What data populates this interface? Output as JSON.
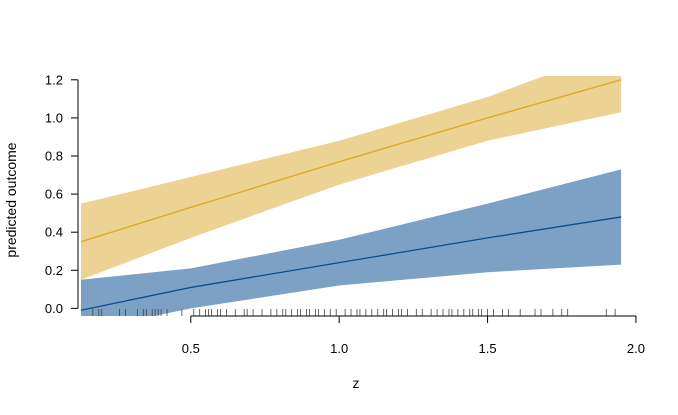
{
  "chart_data": {
    "type": "line",
    "title": "",
    "xlabel": "z",
    "ylabel": "predicted outcome",
    "xlim": [
      0.12,
      1.98
    ],
    "ylim": [
      -0.04,
      1.22
    ],
    "x_ticks": [
      0.5,
      1.0,
      1.5,
      2.0
    ],
    "x_tick_labels": [
      "0.5",
      "1.0",
      "1.5",
      "2.0"
    ],
    "y_ticks": [
      0.0,
      0.2,
      0.4,
      0.6,
      0.8,
      1.0,
      1.2
    ],
    "y_tick_labels": [
      "0.0",
      "0.2",
      "0.4",
      "0.6",
      "0.8",
      "1.0",
      "1.2"
    ],
    "grid": false,
    "series": [
      {
        "color": "#E0A526",
        "band_color": "#EDD393",
        "x": [
          0.13,
          0.5,
          1.0,
          1.5,
          1.95
        ],
        "y": [
          0.35,
          0.53,
          0.77,
          1.0,
          1.2
        ],
        "lower": [
          0.15,
          0.37,
          0.65,
          0.88,
          1.03
        ],
        "upper": [
          0.55,
          0.69,
          0.88,
          1.11,
          1.37
        ]
      },
      {
        "color": "#0F4B8F",
        "band_color": "#7DA1C5",
        "x": [
          0.13,
          0.5,
          1.0,
          1.5,
          1.95
        ],
        "y": [
          -0.01,
          0.11,
          0.24,
          0.37,
          0.48
        ],
        "lower": [
          -0.12,
          0.0,
          0.12,
          0.19,
          0.23
        ],
        "upper": [
          0.15,
          0.21,
          0.36,
          0.55,
          0.73
        ]
      }
    ],
    "rug": [
      0.17,
      0.19,
      0.2,
      0.26,
      0.28,
      0.32,
      0.34,
      0.35,
      0.37,
      0.38,
      0.39,
      0.4,
      0.42,
      0.47,
      0.51,
      0.53,
      0.55,
      0.56,
      0.57,
      0.59,
      0.6,
      0.62,
      0.65,
      0.68,
      0.69,
      0.71,
      0.74,
      0.77,
      0.79,
      0.81,
      0.82,
      0.84,
      0.86,
      0.87,
      0.89,
      0.9,
      0.92,
      0.93,
      0.95,
      0.97,
      0.99,
      1.02,
      1.04,
      1.06,
      1.07,
      1.09,
      1.11,
      1.13,
      1.15,
      1.16,
      1.18,
      1.2,
      1.21,
      1.23,
      1.26,
      1.28,
      1.31,
      1.33,
      1.35,
      1.37,
      1.38,
      1.4,
      1.42,
      1.44,
      1.45,
      1.47,
      1.48,
      1.5,
      1.52,
      1.55,
      1.57,
      1.61,
      1.66,
      1.68,
      1.72,
      1.75,
      1.77,
      1.9,
      1.93
    ]
  }
}
